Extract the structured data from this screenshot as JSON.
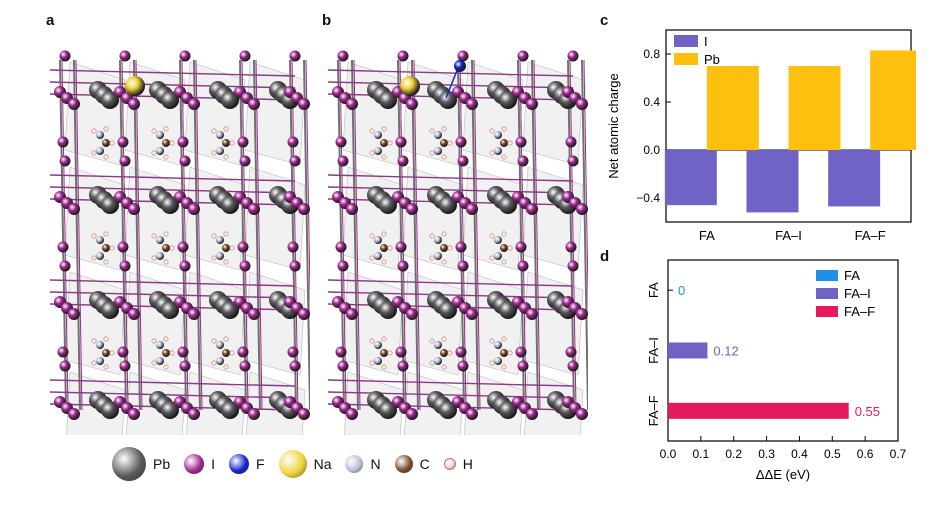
{
  "panels": {
    "a": "a",
    "b": "b",
    "c": "c",
    "d": "d"
  },
  "atom_legend": [
    {
      "label": "Pb",
      "color": "#5a5a5e"
    },
    {
      "label": "I",
      "color": "#a0288f"
    },
    {
      "label": "F",
      "color": "#1424c8"
    },
    {
      "label": "Na",
      "color": "#f0d23a"
    },
    {
      "label": "N",
      "color": "#b8c0d8"
    },
    {
      "label": "C",
      "color": "#7a4a2a"
    },
    {
      "label": "H",
      "color": "#f2d6d0"
    }
  ],
  "chart_data": [
    {
      "type": "bar",
      "ylabel": "Net atomic charge",
      "xlabel": "",
      "categories": [
        "FA",
        "FA–I",
        "FA–F"
      ],
      "ylim": [
        -0.6,
        1.0
      ],
      "yticks": [
        -0.4,
        0.0,
        0.4,
        0.8
      ],
      "ytick_labels": [
        "−0.4",
        "0.0",
        "0.4",
        "0.8"
      ],
      "series": [
        {
          "name": "I",
          "color": "#6f63c5",
          "values": [
            -0.46,
            -0.52,
            -0.47
          ]
        },
        {
          "name": "Pb",
          "color": "#fdc00f",
          "values": [
            0.7,
            0.7,
            0.83
          ]
        }
      ],
      "legend": "top-left",
      "grid": false
    },
    {
      "type": "bar",
      "orientation": "horizontal",
      "xlabel": "ΔΔE (eV)",
      "ylabel": "",
      "categories": [
        "FA",
        "FA–I",
        "FA–F"
      ],
      "values": [
        0,
        0.12,
        0.55
      ],
      "value_labels": [
        "0",
        "0.12",
        "0.55"
      ],
      "colors": [
        "#1e90e6",
        "#6f63c5",
        "#e5195e"
      ],
      "xlim": [
        0,
        0.7
      ],
      "xticks": [
        0,
        0.1,
        0.2,
        0.3,
        0.4,
        0.5,
        0.6,
        0.7
      ],
      "xtick_labels": [
        "0.0",
        "0.1",
        "0.2",
        "0.3",
        "0.4",
        "0.5",
        "0.6",
        "0.7"
      ],
      "legend": "top-right",
      "grid": false
    }
  ]
}
